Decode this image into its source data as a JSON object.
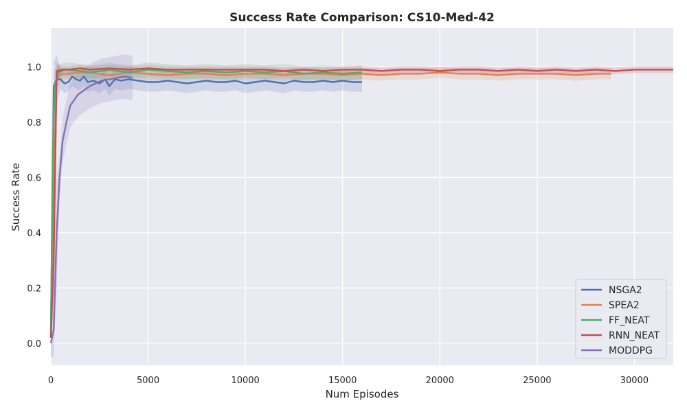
{
  "chart_data": {
    "type": "line",
    "title": "Success Rate Comparison: CS10-Med-42",
    "xlabel": "Num Episodes",
    "ylabel": "Success Rate",
    "xlim": [
      0,
      32000
    ],
    "ylim": [
      -0.08,
      1.14
    ],
    "xticks": [
      0,
      5000,
      10000,
      15000,
      20000,
      25000,
      30000
    ],
    "yticks": [
      0.0,
      0.2,
      0.4,
      0.6,
      0.8,
      1.0
    ],
    "xtick_labels": [
      "0",
      "5000",
      "10000",
      "15000",
      "20000",
      "25000",
      "30000"
    ],
    "ytick_labels": [
      "0.0",
      "0.2",
      "0.4",
      "0.6",
      "0.8",
      "1.0"
    ],
    "grid": true,
    "background": "#eaeaf2",
    "legend_position": "lower-right",
    "series": [
      {
        "name": "NSGA2",
        "color": "#4c72b0",
        "x": [
          0,
          150,
          300,
          500,
          700,
          900,
          1100,
          1300,
          1500,
          1700,
          1900,
          2200,
          2500,
          2800,
          3000,
          3300,
          3600,
          4000,
          4500,
          5000,
          5500,
          6000,
          6500,
          7000,
          7500,
          8000,
          8500,
          9000,
          9500,
          10000,
          10500,
          11000,
          11500,
          12000,
          12500,
          13000,
          13500,
          14000,
          14500,
          15000,
          15500,
          16000
        ],
        "y": [
          0.02,
          0.93,
          0.955,
          0.955,
          0.94,
          0.945,
          0.965,
          0.955,
          0.95,
          0.965,
          0.945,
          0.95,
          0.94,
          0.955,
          0.93,
          0.955,
          0.95,
          0.955,
          0.95,
          0.945,
          0.945,
          0.95,
          0.945,
          0.94,
          0.945,
          0.95,
          0.945,
          0.945,
          0.95,
          0.94,
          0.945,
          0.95,
          0.945,
          0.94,
          0.95,
          0.945,
          0.945,
          0.95,
          0.945,
          0.95,
          0.945,
          0.945
        ],
        "band": 0.035
      },
      {
        "name": "SPEA2",
        "color": "#dd8452",
        "x": [
          0,
          150,
          300,
          600,
          1000,
          1500,
          2000,
          2500,
          3000,
          3500,
          4000,
          5000,
          6000,
          7000,
          8000,
          9000,
          10000,
          11000,
          12000,
          13000,
          14000,
          15000,
          16000,
          17000,
          18000,
          19000,
          20000,
          21000,
          22000,
          23000,
          24000,
          25000,
          26000,
          27000,
          28000,
          28800
        ],
        "y": [
          0.02,
          0.6,
          0.96,
          0.975,
          0.975,
          0.98,
          0.98,
          0.975,
          0.97,
          0.975,
          0.98,
          0.975,
          0.97,
          0.975,
          0.975,
          0.97,
          0.975,
          0.975,
          0.97,
          0.975,
          0.975,
          0.97,
          0.975,
          0.97,
          0.975,
          0.975,
          0.98,
          0.975,
          0.975,
          0.97,
          0.975,
          0.975,
          0.975,
          0.97,
          0.975,
          0.975
        ],
        "band": 0.02
      },
      {
        "name": "FF_NEAT",
        "color": "#55a868",
        "x": [
          0,
          100,
          200,
          400,
          700,
          1000,
          1500,
          2000,
          2500,
          3000,
          3500,
          4000,
          4500,
          5000,
          6000,
          7000,
          8000,
          9000,
          10000,
          11000,
          12000,
          13000,
          14000,
          15000,
          16000
        ],
        "y": [
          0.02,
          0.7,
          0.93,
          0.98,
          0.99,
          0.99,
          0.985,
          0.98,
          0.985,
          0.99,
          0.985,
          0.98,
          0.985,
          0.99,
          0.985,
          0.98,
          0.985,
          0.98,
          0.985,
          0.98,
          0.985,
          0.975,
          0.98,
          0.975,
          0.98
        ],
        "band": 0.025
      },
      {
        "name": "RNN_NEAT",
        "color": "#c44e52",
        "x": [
          0,
          150,
          300,
          600,
          1000,
          1500,
          2000,
          3000,
          4000,
          5000,
          6000,
          7000,
          8000,
          9000,
          10000,
          11000,
          12000,
          13000,
          14000,
          15000,
          16000,
          17000,
          18000,
          19000,
          20000,
          21000,
          22000,
          23000,
          24000,
          25000,
          26000,
          27000,
          28000,
          29000,
          30000,
          31000,
          32000
        ],
        "y": [
          0.02,
          0.3,
          0.985,
          0.99,
          0.99,
          0.995,
          0.99,
          0.995,
          0.99,
          0.995,
          0.99,
          0.99,
          0.99,
          0.99,
          0.99,
          0.99,
          0.985,
          0.99,
          0.985,
          0.99,
          0.99,
          0.985,
          0.99,
          0.99,
          0.985,
          0.99,
          0.99,
          0.985,
          0.99,
          0.985,
          0.99,
          0.985,
          0.99,
          0.985,
          0.99,
          0.99,
          0.99
        ],
        "band": 0.012
      },
      {
        "name": "MODDPG",
        "color": "#8172b3",
        "x": [
          0,
          150,
          300,
          450,
          600,
          800,
          1000,
          1200,
          1400,
          1600,
          1800,
          2000,
          2300,
          2600,
          3000,
          3400,
          3800,
          4200
        ],
        "y": [
          0.0,
          0.05,
          0.4,
          0.6,
          0.73,
          0.8,
          0.86,
          0.88,
          0.9,
          0.91,
          0.92,
          0.93,
          0.94,
          0.95,
          0.955,
          0.96,
          0.965,
          0.96
        ],
        "band": 0.08
      }
    ]
  }
}
